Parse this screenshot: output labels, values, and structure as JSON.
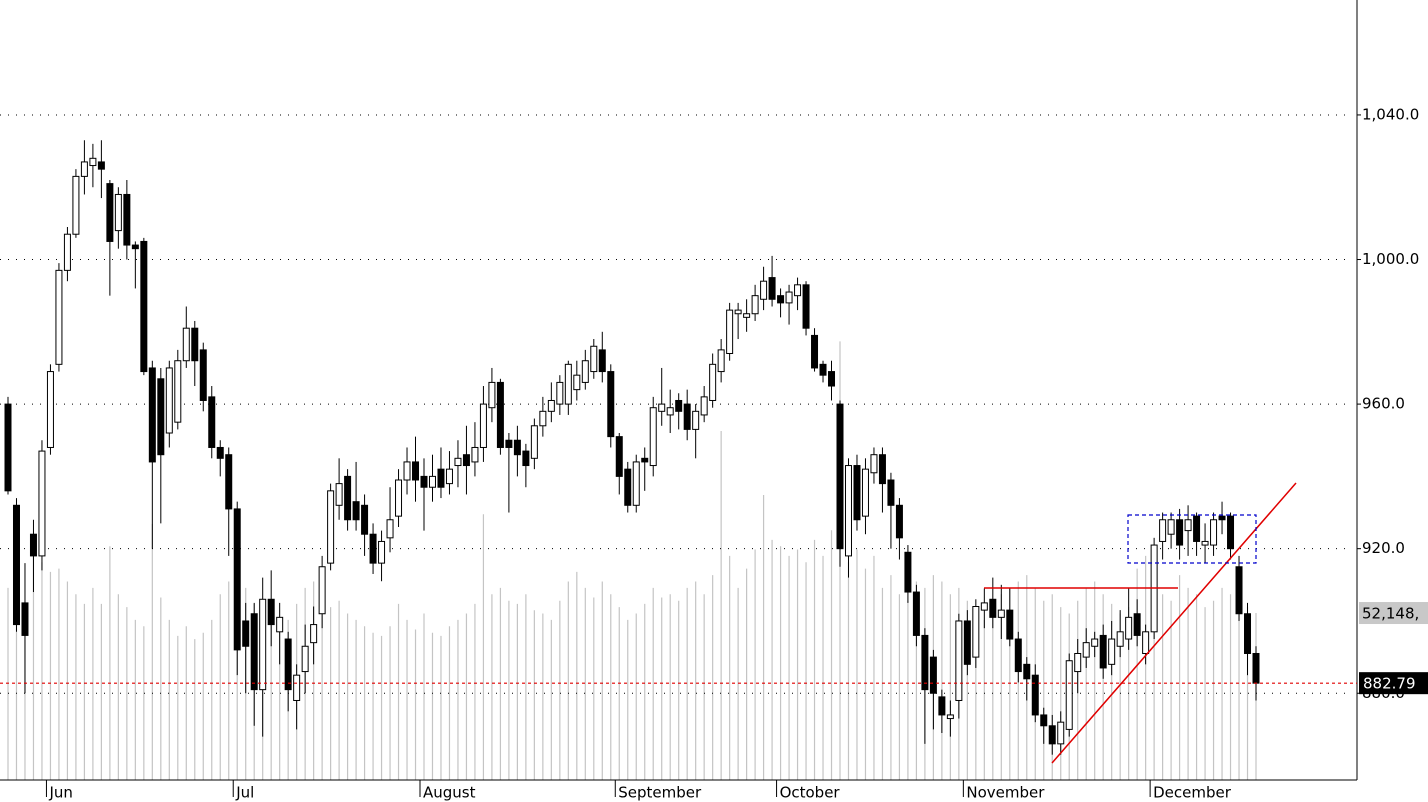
{
  "chart_data": {
    "type": "candlestick",
    "categories": [
      null,
      null,
      null,
      null,
      null,
      "Jun",
      null,
      null,
      null,
      null,
      null,
      null,
      null,
      null,
      null,
      null,
      null,
      null,
      null,
      null,
      null,
      null,
      null,
      null,
      null,
      null,
      null,
      "Jul",
      null,
      null,
      null,
      null,
      null,
      null,
      null,
      null,
      null,
      null,
      null,
      null,
      null,
      null,
      null,
      null,
      null,
      null,
      null,
      null,
      null,
      "August",
      null,
      null,
      null,
      null,
      null,
      null,
      null,
      null,
      null,
      null,
      null,
      null,
      null,
      null,
      null,
      null,
      null,
      null,
      null,
      null,
      null,
      null,
      "September",
      null,
      null,
      null,
      null,
      null,
      null,
      null,
      null,
      null,
      null,
      null,
      null,
      null,
      null,
      null,
      null,
      null,
      null,
      "October",
      null,
      null,
      null,
      null,
      null,
      null,
      null,
      null,
      null,
      null,
      null,
      null,
      null,
      null,
      null,
      null,
      null,
      null,
      null,
      null,
      null,
      "November",
      null,
      null,
      null,
      null,
      null,
      null,
      null,
      null,
      null,
      null,
      null,
      null,
      null,
      null,
      null,
      null,
      null,
      null,
      null,
      null,
      null,
      "December",
      null,
      null,
      null,
      null,
      null,
      null,
      null,
      null,
      null,
      null,
      null,
      null
    ],
    "open": [
      960,
      932,
      905,
      924,
      918,
      948,
      971,
      997,
      1007,
      1023,
      1026,
      1027,
      1021,
      1008,
      1018,
      1004,
      1005,
      970,
      967,
      952,
      955,
      972,
      981,
      975,
      962,
      948,
      946,
      931,
      900,
      902,
      881,
      906,
      897,
      895,
      878,
      886,
      894,
      902,
      916,
      932,
      940,
      933,
      932,
      924,
      916,
      923,
      929,
      939,
      944,
      940,
      937,
      942,
      938,
      943,
      946,
      944,
      948,
      959,
      966,
      950,
      950,
      947,
      945,
      954,
      958,
      960,
      960,
      964,
      966,
      969,
      975,
      969,
      951,
      942,
      932,
      945,
      943,
      958,
      957,
      961,
      960,
      953,
      957,
      961,
      969,
      974,
      985,
      984,
      985,
      989,
      995,
      990,
      988,
      990,
      993,
      979,
      971,
      969,
      960,
      918,
      943,
      929,
      941,
      946,
      939,
      932,
      919,
      908,
      896,
      890,
      879,
      873,
      878,
      900,
      890,
      903,
      906,
      901,
      903,
      895,
      888,
      885,
      874,
      871,
      866,
      870,
      886,
      890,
      893,
      896,
      888,
      893,
      895,
      902,
      891,
      897,
      922,
      924,
      928,
      925,
      929,
      921,
      921,
      929,
      929,
      915,
      902,
      891
    ],
    "close": [
      936,
      899,
      896,
      918,
      947,
      969,
      997,
      1007,
      1023,
      1027,
      1028,
      1025,
      1005,
      1018,
      1004,
      1003,
      969,
      944,
      946,
      970,
      972,
      981,
      972,
      961,
      948,
      945,
      931,
      892,
      893,
      881,
      906,
      899,
      901,
      881,
      885,
      893,
      899,
      915,
      936,
      938,
      928,
      928,
      924,
      916,
      922,
      928,
      939,
      944,
      939,
      937,
      940,
      937,
      942,
      945,
      943,
      948,
      960,
      966,
      948,
      948,
      946,
      943,
      954,
      958,
      961,
      966,
      971,
      968,
      972,
      976,
      969,
      951,
      940,
      932,
      944,
      944,
      959,
      960,
      959,
      958,
      953,
      958,
      962,
      971,
      975,
      986,
      986,
      985,
      990,
      994,
      989,
      988,
      991,
      993,
      981,
      970,
      968,
      965,
      920,
      943,
      928,
      942,
      946,
      938,
      932,
      923,
      908,
      896,
      881,
      880,
      874,
      874,
      900,
      888,
      904,
      905,
      901,
      903,
      895,
      886,
      884,
      874,
      871,
      866,
      872,
      889,
      891,
      894,
      895,
      887,
      895,
      897,
      901,
      896,
      897,
      921,
      928,
      928,
      921,
      928,
      922,
      922,
      928,
      928,
      920,
      902,
      891,
      882.79
    ],
    "high": [
      962,
      934,
      916,
      928,
      950,
      971,
      999,
      1009,
      1025,
      1033,
      1032,
      1033,
      1022,
      1020,
      1022,
      1005,
      1006,
      972,
      970,
      972,
      975,
      987,
      983,
      977,
      965,
      950,
      948,
      933,
      905,
      905,
      912,
      914,
      905,
      897,
      888,
      899,
      904,
      918,
      938,
      945,
      942,
      944,
      935,
      927,
      925,
      937,
      942,
      948,
      951,
      945,
      946,
      948,
      947,
      950,
      954,
      955,
      965,
      970,
      967,
      952,
      954,
      949,
      956,
      962,
      966,
      968,
      972,
      972,
      975,
      978,
      980,
      971,
      952,
      944,
      946,
      948,
      962,
      970,
      964,
      963,
      964,
      960,
      965,
      974,
      978,
      988,
      988,
      989,
      993,
      998,
      1001,
      992,
      993,
      995,
      994,
      981,
      972,
      972,
      961,
      945,
      946,
      945,
      948,
      948,
      941,
      934,
      921,
      910,
      898,
      892,
      881,
      878,
      902,
      903,
      906,
      909,
      912,
      910,
      909,
      897,
      890,
      888,
      876,
      874,
      875,
      891,
      895,
      898,
      897,
      899,
      900,
      903,
      909,
      906,
      899,
      923,
      930,
      930,
      931,
      932,
      930,
      927,
      930,
      933,
      930,
      918,
      905,
      893
    ],
    "low": [
      935,
      897,
      880,
      908,
      914,
      946,
      969,
      994,
      1006,
      1018,
      1020,
      1017,
      990,
      1003,
      1000,
      992,
      968,
      920,
      927,
      948,
      953,
      970,
      965,
      958,
      945,
      940,
      918,
      885,
      880,
      871,
      868,
      893,
      888,
      875,
      870,
      880,
      888,
      898,
      914,
      928,
      925,
      925,
      918,
      913,
      911,
      919,
      926,
      935,
      933,
      925,
      933,
      934,
      935,
      937,
      935,
      940,
      944,
      955,
      946,
      930,
      940,
      937,
      942,
      951,
      955,
      957,
      957,
      961,
      964,
      967,
      966,
      948,
      935,
      930,
      930,
      936,
      940,
      954,
      952,
      953,
      950,
      945,
      955,
      959,
      966,
      972,
      978,
      980,
      983,
      986,
      987,
      984,
      982,
      986,
      979,
      969,
      966,
      961,
      915,
      912,
      925,
      924,
      938,
      930,
      920,
      917,
      905,
      893,
      866,
      870,
      869,
      868,
      873,
      885,
      887,
      898,
      898,
      895,
      893,
      883,
      878,
      872,
      866,
      863,
      863,
      868,
      880,
      887,
      890,
      884,
      885,
      890,
      892,
      893,
      888,
      895,
      917,
      920,
      917,
      918,
      918,
      916,
      918,
      924,
      917,
      900,
      885,
      878
    ],
    "volume": {
      "axis": "y2",
      "color": "#c4c4c4",
      "values": [
        60000000,
        62000000,
        55000000,
        70000000,
        68000000,
        65000000,
        66000000,
        62000000,
        58000000,
        55000000,
        60000000,
        55000000,
        73000000,
        58000000,
        54000000,
        50000000,
        48000000,
        80000000,
        57000000,
        50000000,
        45000000,
        48000000,
        44000000,
        46000000,
        50000000,
        58000000,
        62000000,
        65000000,
        60000000,
        55000000,
        56000000,
        52000000,
        48000000,
        50000000,
        55000000,
        60000000,
        62000000,
        58000000,
        54000000,
        56000000,
        52000000,
        50000000,
        48000000,
        46000000,
        45000000,
        48000000,
        55000000,
        50000000,
        47000000,
        52000000,
        46000000,
        45000000,
        48000000,
        50000000,
        52000000,
        55000000,
        83000000,
        58000000,
        60000000,
        56000000,
        55000000,
        58000000,
        53000000,
        52000000,
        50000000,
        56000000,
        62000000,
        65000000,
        60000000,
        57000000,
        62000000,
        58000000,
        54000000,
        50000000,
        52000000,
        55000000,
        60000000,
        57000000,
        58000000,
        56000000,
        60000000,
        62000000,
        58000000,
        64000000,
        109000000,
        70000000,
        60000000,
        66000000,
        72000000,
        89000000,
        75000000,
        73000000,
        70000000,
        72000000,
        68000000,
        75000000,
        70000000,
        78000000,
        137000000,
        68000000,
        72000000,
        66000000,
        70000000,
        60000000,
        64000000,
        58000000,
        56000000,
        62000000,
        60000000,
        64000000,
        62000000,
        58000000,
        60000000,
        56000000,
        54000000,
        50000000,
        56000000,
        58000000,
        60000000,
        62000000,
        64000000,
        60000000,
        56000000,
        58000000,
        54000000,
        52000000,
        56000000,
        60000000,
        62000000,
        58000000,
        55000000,
        52000000,
        54000000,
        66000000,
        70000000,
        62000000,
        58000000,
        56000000,
        64000000,
        60000000,
        58000000,
        54000000,
        56000000,
        60000000,
        58000000,
        55000000,
        54000000,
        52148000
      ]
    },
    "ylim": [
      856,
      1071.8
    ],
    "yticks": [
      {
        "value": 880,
        "label": "880.0"
      },
      {
        "value": 920,
        "label": "920.0"
      },
      {
        "value": 960,
        "label": "960.0"
      },
      {
        "value": 1000,
        "label": "1,000.0"
      },
      {
        "value": 1040,
        "label": "1,040.0"
      }
    ],
    "y2lim": [
      0,
      243600000
    ],
    "grid": true,
    "up_color": "#ffffff",
    "down_color": "#000000",
    "last_price": 882.79,
    "volume_label": {
      "value": 52148000,
      "label": "52,148,"
    }
  }
}
